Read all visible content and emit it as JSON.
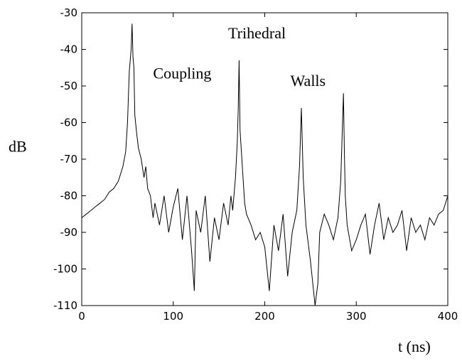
{
  "chart_data": {
    "type": "line",
    "title": "",
    "xlabel": "t (ns)",
    "ylabel": "dB",
    "xlim": [
      0,
      400
    ],
    "ylim": [
      -110,
      -30
    ],
    "xticks": [
      0,
      100,
      200,
      300,
      400
    ],
    "yticks": [
      -30,
      -40,
      -50,
      -60,
      -70,
      -80,
      -90,
      -100,
      -110
    ],
    "xtick_labels": [
      "0",
      "100",
      "200",
      "300",
      "400"
    ],
    "ytick_labels": [
      "-30",
      "-40",
      "-50",
      "-60",
      "-70",
      "-80",
      "-90",
      "-100",
      "-110"
    ],
    "grid": false,
    "line_color": "#000000",
    "series": [
      {
        "x": [
          0,
          5,
          10,
          15,
          20,
          25,
          30,
          35,
          40,
          45,
          48,
          50,
          52,
          54,
          55,
          56,
          57,
          58,
          60,
          62,
          65,
          68,
          70,
          72,
          75,
          78,
          80,
          85,
          90,
          95,
          100,
          105,
          110,
          115,
          120,
          123,
          125,
          130,
          135,
          140,
          145,
          150,
          155,
          160,
          163,
          165,
          168,
          170,
          171,
          172,
          173,
          175,
          178,
          180,
          185,
          190,
          195,
          200,
          205,
          210,
          215,
          220,
          225,
          230,
          235,
          238,
          240,
          242,
          245,
          250,
          255,
          258,
          260,
          265,
          270,
          275,
          280,
          283,
          285,
          286,
          287,
          288,
          290,
          295,
          300,
          305,
          310,
          315,
          320,
          325,
          330,
          335,
          340,
          345,
          350,
          355,
          360,
          365,
          370,
          375,
          380,
          385,
          390,
          395,
          400
        ],
        "y": [
          -86,
          -85,
          -84,
          -83,
          -82,
          -81,
          -79,
          -78,
          -76,
          -72,
          -68,
          -60,
          -46,
          -40,
          -33,
          -42,
          -45,
          -58,
          -63,
          -67,
          -70,
          -75,
          -72,
          -78,
          -80,
          -86,
          -82,
          -88,
          -80,
          -90,
          -83,
          -78,
          -92,
          -80,
          -95,
          -106,
          -84,
          -90,
          -80,
          -98,
          -86,
          -92,
          -82,
          -88,
          -80,
          -84,
          -75,
          -65,
          -56,
          -43,
          -62,
          -70,
          -82,
          -85,
          -88,
          -92,
          -90,
          -94,
          -106,
          -88,
          -95,
          -85,
          -102,
          -90,
          -84,
          -72,
          -56,
          -75,
          -88,
          -98,
          -110,
          -104,
          -90,
          -85,
          -88,
          -92,
          -86,
          -76,
          -60,
          -52,
          -68,
          -80,
          -88,
          -95,
          -92,
          -88,
          -85,
          -96,
          -88,
          -82,
          -92,
          -86,
          -90,
          -88,
          -84,
          -95,
          -86,
          -90,
          -88,
          -92,
          -86,
          -88,
          -85,
          -84,
          -80
        ]
      }
    ],
    "annotations": [
      {
        "text": "Coupling",
        "x": 78,
        "y": -48
      },
      {
        "text": "Trihedral",
        "x": 160,
        "y": -37
      },
      {
        "text": "Walls",
        "x": 228,
        "y": -50
      }
    ]
  }
}
